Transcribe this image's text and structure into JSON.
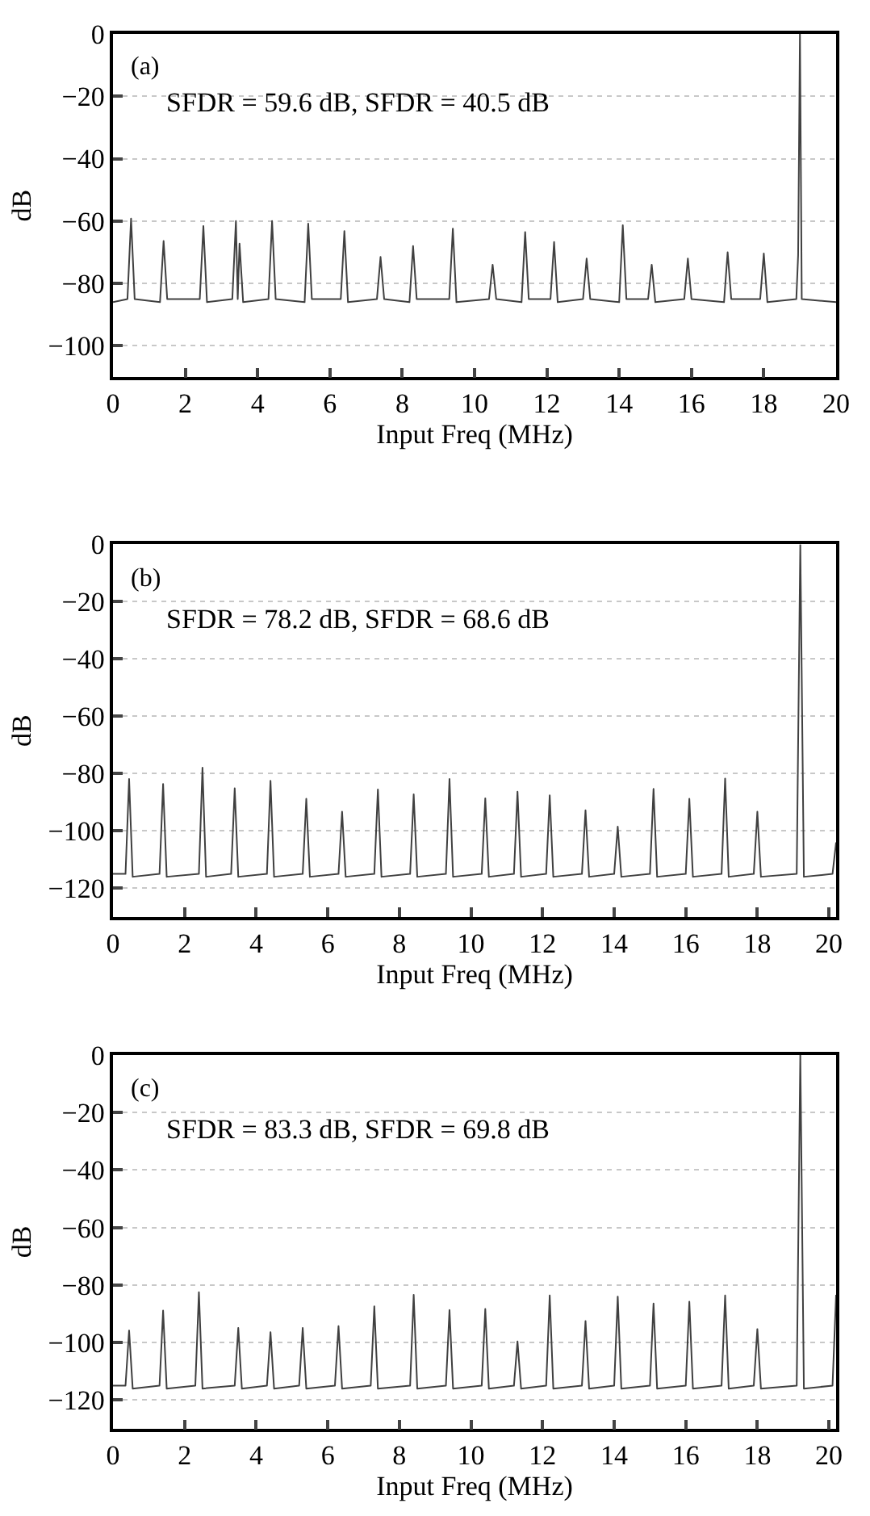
{
  "chart_data": [
    {
      "type": "line",
      "color": "#404040",
      "grid": "y",
      "line_style": "solid",
      "xlabel": "Input Freq (MHz)",
      "ylabel": "dB",
      "annotations": [
        "(a)",
        "SFDR = 59.6 dB, SFDR = 40.5 dB"
      ],
      "xlim": [
        0,
        20
      ],
      "ylim": [
        -110,
        0
      ],
      "xticks": [
        0,
        2,
        4,
        6,
        8,
        10,
        12,
        14,
        16,
        18,
        20
      ],
      "yticks": [
        0,
        {
          "value": -20,
          "label": "−20"
        },
        {
          "value": -40,
          "label": "−40"
        },
        {
          "value": -60,
          "label": "−60"
        },
        {
          "value": -80,
          "label": "−80"
        },
        {
          "value": -100,
          "label": "−100"
        }
      ],
      "x": [
        0,
        0.4,
        0.5,
        0.6,
        1.3,
        1.4,
        1.5,
        2.4,
        2.5,
        2.6,
        3.3,
        3.4,
        3.45,
        3.5,
        3.6,
        4.3,
        4.4,
        4.5,
        5.3,
        5.4,
        5.5,
        6.3,
        6.4,
        6.5,
        7.3,
        7.4,
        7.5,
        8.2,
        8.3,
        8.4,
        9.3,
        9.4,
        9.5,
        10.4,
        10.5,
        10.6,
        11.3,
        11.4,
        11.5,
        12.1,
        12.2,
        12.3,
        13.0,
        13.1,
        13.2,
        14.0,
        14.1,
        14.2,
        14.8,
        14.9,
        15.0,
        15.8,
        15.9,
        16.0,
        16.9,
        17.0,
        17.1,
        17.9,
        18.0,
        18.1,
        18.9,
        18.95,
        19.0,
        19.05,
        20
      ],
      "values": [
        -86,
        -85,
        -59.2,
        -85,
        -86,
        -66.4,
        -85,
        -85,
        -61.6,
        -86,
        -85,
        -60,
        -85,
        -67.2,
        -86,
        -85,
        -60,
        -85,
        -86,
        -60.8,
        -85,
        -85,
        -63.2,
        -86,
        -85,
        -71.5,
        -85,
        -86,
        -68,
        -85,
        -85,
        -62.4,
        -86,
        -85,
        -74,
        -85,
        -86,
        -63.5,
        -85,
        -85,
        -66.7,
        -86,
        -85,
        -72,
        -85,
        -86,
        -61.3,
        -85,
        -85,
        -74,
        -86,
        -85,
        -72,
        -85,
        -86,
        -70,
        -85,
        -85,
        -70.4,
        -86,
        -85,
        -70.9,
        0,
        -85,
        -86
      ]
    },
    {
      "type": "line",
      "color": "#404040",
      "grid": "y",
      "line_style": "solid",
      "xlabel": "Input Freq (MHz)",
      "ylabel": "dB",
      "annotations": [
        "(b)",
        "SFDR = 78.2 dB, SFDR = 68.6 dB"
      ],
      "xlim": [
        0,
        20.2
      ],
      "ylim": [
        -130,
        0
      ],
      "xticks": [
        0,
        2,
        4,
        6,
        8,
        10,
        12,
        14,
        16,
        18,
        20
      ],
      "yticks": [
        0,
        {
          "value": -20,
          "label": "−20"
        },
        {
          "value": -40,
          "label": "−40"
        },
        {
          "value": -60,
          "label": "−60"
        },
        {
          "value": -80,
          "label": "−80"
        },
        {
          "value": -100,
          "label": "−100"
        },
        {
          "value": -120,
          "label": "−120"
        }
      ],
      "x": [
        0,
        0.35,
        0.45,
        0.55,
        1.3,
        1.4,
        1.5,
        2.4,
        2.5,
        2.6,
        3.3,
        3.4,
        3.5,
        4.3,
        4.4,
        4.5,
        5.3,
        5.4,
        5.5,
        6.3,
        6.4,
        6.5,
        7.3,
        7.4,
        7.5,
        8.3,
        8.4,
        8.5,
        9.3,
        9.4,
        9.5,
        10.3,
        10.4,
        10.5,
        11.2,
        11.3,
        11.4,
        12.1,
        12.2,
        12.3,
        13.1,
        13.2,
        13.3,
        14.0,
        14.1,
        14.2,
        15.0,
        15.1,
        15.2,
        16.0,
        16.1,
        16.2,
        17.0,
        17.1,
        17.2,
        17.9,
        18.0,
        18.1,
        19.1,
        19.2,
        19.3,
        20.1,
        20.2
      ],
      "values": [
        -115,
        -115,
        -81.9,
        -116,
        -115,
        -83.6,
        -116,
        -115,
        -77.9,
        -116,
        -115,
        -85.1,
        -116,
        -115,
        -82.5,
        -116,
        -115,
        -88.8,
        -116,
        -115,
        -93.3,
        -116,
        -115,
        -85.5,
        -116,
        -115,
        -87.2,
        -116,
        -115,
        -81.9,
        -116,
        -115,
        -88.6,
        -116,
        -115,
        -86.3,
        -116,
        -115,
        -87.6,
        -116,
        -115,
        -92.8,
        -116,
        -115,
        -98.5,
        -116,
        -115,
        -85.3,
        -116,
        -115,
        -88.8,
        -116,
        -115,
        -81.7,
        -116,
        -115,
        -93.3,
        -116,
        -115,
        0,
        -116,
        -115,
        -104
      ]
    },
    {
      "type": "line",
      "color": "#404040",
      "grid": "y",
      "line_style": "solid",
      "xlabel": "Input Freq (MHz)",
      "ylabel": "dB",
      "annotations": [
        "(c)",
        "SFDR = 83.3 dB, SFDR = 69.8 dB"
      ],
      "xlim": [
        0,
        20.2
      ],
      "ylim": [
        -130,
        0
      ],
      "xticks": [
        0,
        2,
        4,
        6,
        8,
        10,
        12,
        14,
        16,
        18,
        20
      ],
      "yticks": [
        0,
        {
          "value": -20,
          "label": "−20"
        },
        {
          "value": -40,
          "label": "−40"
        },
        {
          "value": -60,
          "label": "−60"
        },
        {
          "value": -80,
          "label": "−80"
        },
        {
          "value": -100,
          "label": "−100"
        },
        {
          "value": -120,
          "label": "−120"
        }
      ],
      "x": [
        0,
        0.35,
        0.45,
        0.55,
        1.3,
        1.4,
        1.5,
        2.3,
        2.4,
        2.5,
        3.4,
        3.5,
        3.6,
        4.3,
        4.4,
        4.5,
        5.2,
        5.3,
        5.4,
        6.2,
        6.3,
        6.4,
        7.2,
        7.3,
        7.4,
        8.3,
        8.4,
        8.5,
        9.3,
        9.4,
        9.5,
        10.3,
        10.4,
        10.5,
        11.2,
        11.3,
        11.4,
        12.1,
        12.2,
        12.3,
        13.1,
        13.2,
        13.3,
        14.0,
        14.1,
        14.2,
        15.0,
        15.1,
        15.2,
        16.0,
        16.1,
        16.2,
        17.0,
        17.1,
        17.2,
        17.9,
        18.0,
        18.1,
        19.1,
        19.2,
        19.3,
        20.1,
        20.2
      ],
      "values": [
        -115,
        -115,
        -95.8,
        -116,
        -115,
        -88.9,
        -116,
        -115,
        -82.5,
        -116,
        -115,
        -94.9,
        -116,
        -115,
        -96.4,
        -116,
        -115,
        -94.9,
        -116,
        -115,
        -94.3,
        -116,
        -115,
        -87.4,
        -116,
        -115,
        -83.4,
        -116,
        -115,
        -88.7,
        -116,
        -115,
        -88.3,
        -116,
        -115,
        -99.6,
        -116,
        -115,
        -83.6,
        -116,
        -115,
        -92.5,
        -116,
        -115,
        -84,
        -116,
        -115,
        -86.4,
        -116,
        -115,
        -85.8,
        -116,
        -115,
        -83.6,
        -116,
        -115,
        -95.3,
        -116,
        -115,
        0,
        -116,
        -115,
        -83.4
      ]
    }
  ]
}
